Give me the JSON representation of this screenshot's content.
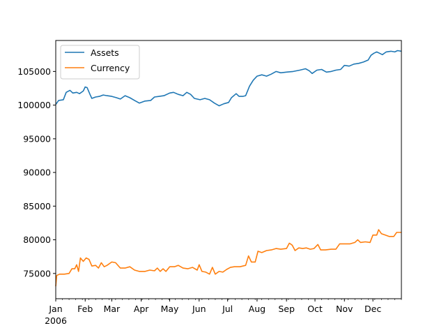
{
  "chart_data": {
    "type": "line",
    "title": "",
    "xlabel": "",
    "ylabel": "",
    "x_ticks": [
      {
        "date": "2006-01-01",
        "label": "Jan"
      },
      {
        "date": "2006-02-01",
        "label": "Feb"
      },
      {
        "date": "2006-03-01",
        "label": "Mar"
      },
      {
        "date": "2006-04-01",
        "label": "Apr"
      },
      {
        "date": "2006-05-01",
        "label": "May"
      },
      {
        "date": "2006-06-01",
        "label": "Jun"
      },
      {
        "date": "2006-07-01",
        "label": "Jul"
      },
      {
        "date": "2006-08-01",
        "label": "Aug"
      },
      {
        "date": "2006-09-01",
        "label": "Sep"
      },
      {
        "date": "2006-10-01",
        "label": "Oct"
      },
      {
        "date": "2006-11-01",
        "label": "Nov"
      },
      {
        "date": "2006-12-01",
        "label": "Dec"
      }
    ],
    "x_year_label": "2006",
    "xlim": [
      "2006-01-01",
      "2006-12-31"
    ],
    "y_ticks": [
      75000,
      80000,
      85000,
      90000,
      95000,
      100000,
      105000
    ],
    "y_tick_labels": [
      "75000",
      "80000",
      "85000",
      "90000",
      "95000",
      "100000",
      "105000"
    ],
    "ylim": [
      71250,
      109600
    ],
    "legend_position": "top-left",
    "grid": false,
    "series": [
      {
        "name": "Assets",
        "color": "#1f77b4",
        "points": [
          [
            "2006-01-01",
            100100
          ],
          [
            "2006-01-04",
            100700
          ],
          [
            "2006-01-09",
            100800
          ],
          [
            "2006-01-12",
            101900
          ],
          [
            "2006-01-16",
            102200
          ],
          [
            "2006-01-19",
            101800
          ],
          [
            "2006-01-23",
            101900
          ],
          [
            "2006-01-26",
            101700
          ],
          [
            "2006-01-30",
            102100
          ],
          [
            "2006-02-01",
            102700
          ],
          [
            "2006-02-03",
            102600
          ],
          [
            "2006-02-06",
            101600
          ],
          [
            "2006-02-08",
            101000
          ],
          [
            "2006-02-12",
            101200
          ],
          [
            "2006-02-16",
            101300
          ],
          [
            "2006-02-20",
            101500
          ],
          [
            "2006-02-24",
            101400
          ],
          [
            "2006-03-01",
            101300
          ],
          [
            "2006-03-06",
            101100
          ],
          [
            "2006-03-10",
            100900
          ],
          [
            "2006-03-15",
            101400
          ],
          [
            "2006-03-20",
            101100
          ],
          [
            "2006-03-25",
            100700
          ],
          [
            "2006-03-30",
            100300
          ],
          [
            "2006-04-05",
            100600
          ],
          [
            "2006-04-11",
            100700
          ],
          [
            "2006-04-15",
            101200
          ],
          [
            "2006-04-20",
            101300
          ],
          [
            "2006-04-25",
            101400
          ],
          [
            "2006-05-01",
            101800
          ],
          [
            "2006-05-05",
            101900
          ],
          [
            "2006-05-10",
            101600
          ],
          [
            "2006-05-15",
            101400
          ],
          [
            "2006-05-19",
            101900
          ],
          [
            "2006-05-23",
            101600
          ],
          [
            "2006-05-27",
            101000
          ],
          [
            "2006-06-02",
            100800
          ],
          [
            "2006-06-07",
            101000
          ],
          [
            "2006-06-12",
            100800
          ],
          [
            "2006-06-17",
            100300
          ],
          [
            "2006-06-22",
            99900
          ],
          [
            "2006-06-27",
            100200
          ],
          [
            "2006-07-02",
            100400
          ],
          [
            "2006-07-05",
            101100
          ],
          [
            "2006-07-10",
            101700
          ],
          [
            "2006-07-13",
            101300
          ],
          [
            "2006-07-17",
            101300
          ],
          [
            "2006-07-20",
            101400
          ],
          [
            "2006-07-24",
            102800
          ],
          [
            "2006-07-28",
            103700
          ],
          [
            "2006-08-01",
            104300
          ],
          [
            "2006-08-06",
            104500
          ],
          [
            "2006-08-11",
            104300
          ],
          [
            "2006-08-16",
            104600
          ],
          [
            "2006-08-21",
            105000
          ],
          [
            "2006-08-26",
            104800
          ],
          [
            "2006-09-01",
            104900
          ],
          [
            "2006-09-08",
            105000
          ],
          [
            "2006-09-15",
            105200
          ],
          [
            "2006-09-21",
            105400
          ],
          [
            "2006-09-25",
            105100
          ],
          [
            "2006-09-28",
            104700
          ],
          [
            "2006-10-03",
            105200
          ],
          [
            "2006-10-08",
            105300
          ],
          [
            "2006-10-13",
            104900
          ],
          [
            "2006-10-18",
            105000
          ],
          [
            "2006-10-23",
            105200
          ],
          [
            "2006-10-28",
            105300
          ],
          [
            "2006-11-01",
            105900
          ],
          [
            "2006-11-06",
            105800
          ],
          [
            "2006-11-11",
            106100
          ],
          [
            "2006-11-16",
            106200
          ],
          [
            "2006-11-21",
            106400
          ],
          [
            "2006-11-26",
            106700
          ],
          [
            "2006-11-29",
            107400
          ],
          [
            "2006-12-02",
            107700
          ],
          [
            "2006-12-05",
            107900
          ],
          [
            "2006-12-08",
            107700
          ],
          [
            "2006-12-11",
            107500
          ],
          [
            "2006-12-15",
            107900
          ],
          [
            "2006-12-20",
            108000
          ],
          [
            "2006-12-24",
            107900
          ],
          [
            "2006-12-27",
            108100
          ],
          [
            "2006-12-31",
            108000
          ]
        ]
      },
      {
        "name": "Currency",
        "color": "#ff7f0e",
        "points": [
          [
            "2006-01-01",
            73100
          ],
          [
            "2006-01-02",
            74700
          ],
          [
            "2006-01-05",
            74900
          ],
          [
            "2006-01-10",
            74900
          ],
          [
            "2006-01-15",
            75000
          ],
          [
            "2006-01-18",
            75700
          ],
          [
            "2006-01-21",
            75700
          ],
          [
            "2006-01-23",
            76300
          ],
          [
            "2006-01-25",
            75300
          ],
          [
            "2006-01-27",
            77300
          ],
          [
            "2006-01-30",
            76800
          ],
          [
            "2006-02-02",
            77300
          ],
          [
            "2006-02-05",
            77100
          ],
          [
            "2006-02-08",
            76100
          ],
          [
            "2006-02-12",
            76200
          ],
          [
            "2006-02-15",
            75800
          ],
          [
            "2006-02-18",
            76600
          ],
          [
            "2006-02-21",
            76000
          ],
          [
            "2006-02-24",
            76200
          ],
          [
            "2006-03-01",
            76700
          ],
          [
            "2006-03-05",
            76600
          ],
          [
            "2006-03-10",
            75800
          ],
          [
            "2006-03-15",
            75800
          ],
          [
            "2006-03-20",
            76000
          ],
          [
            "2006-03-25",
            75500
          ],
          [
            "2006-03-30",
            75300
          ],
          [
            "2006-04-05",
            75300
          ],
          [
            "2006-04-10",
            75500
          ],
          [
            "2006-04-15",
            75400
          ],
          [
            "2006-04-18",
            75800
          ],
          [
            "2006-04-21",
            75300
          ],
          [
            "2006-04-24",
            75700
          ],
          [
            "2006-04-27",
            75300
          ],
          [
            "2006-05-01",
            76000
          ],
          [
            "2006-05-06",
            76000
          ],
          [
            "2006-05-10",
            76200
          ],
          [
            "2006-05-15",
            75800
          ],
          [
            "2006-05-20",
            75700
          ],
          [
            "2006-05-25",
            75900
          ],
          [
            "2006-05-30",
            75500
          ],
          [
            "2006-06-01",
            76300
          ],
          [
            "2006-06-04",
            75300
          ],
          [
            "2006-06-08",
            75200
          ],
          [
            "2006-06-12",
            74900
          ],
          [
            "2006-06-15",
            75900
          ],
          [
            "2006-06-18",
            74900
          ],
          [
            "2006-06-22",
            75300
          ],
          [
            "2006-06-26",
            75200
          ],
          [
            "2006-06-30",
            75600
          ],
          [
            "2006-07-04",
            75900
          ],
          [
            "2006-07-08",
            76000
          ],
          [
            "2006-07-14",
            76000
          ],
          [
            "2006-07-20",
            76200
          ],
          [
            "2006-07-23",
            77600
          ],
          [
            "2006-07-26",
            76700
          ],
          [
            "2006-07-30",
            76700
          ],
          [
            "2006-08-02",
            78300
          ],
          [
            "2006-08-06",
            78100
          ],
          [
            "2006-08-11",
            78400
          ],
          [
            "2006-08-16",
            78500
          ],
          [
            "2006-08-21",
            78700
          ],
          [
            "2006-08-26",
            78600
          ],
          [
            "2006-09-01",
            78700
          ],
          [
            "2006-09-04",
            79500
          ],
          [
            "2006-09-07",
            79200
          ],
          [
            "2006-09-10",
            78400
          ],
          [
            "2006-09-14",
            78800
          ],
          [
            "2006-09-18",
            78700
          ],
          [
            "2006-09-22",
            78800
          ],
          [
            "2006-09-26",
            78600
          ],
          [
            "2006-09-30",
            78700
          ],
          [
            "2006-10-04",
            79300
          ],
          [
            "2006-10-07",
            78500
          ],
          [
            "2006-10-12",
            78500
          ],
          [
            "2006-10-18",
            78600
          ],
          [
            "2006-10-23",
            78600
          ],
          [
            "2006-10-27",
            79400
          ],
          [
            "2006-11-02",
            79400
          ],
          [
            "2006-11-07",
            79400
          ],
          [
            "2006-11-12",
            79600
          ],
          [
            "2006-11-15",
            80000
          ],
          [
            "2006-11-18",
            79600
          ],
          [
            "2006-11-23",
            79700
          ],
          [
            "2006-11-28",
            79600
          ],
          [
            "2006-12-01",
            80700
          ],
          [
            "2006-12-05",
            80700
          ],
          [
            "2006-12-07",
            81500
          ],
          [
            "2006-12-10",
            80900
          ],
          [
            "2006-12-14",
            80700
          ],
          [
            "2006-12-18",
            80500
          ],
          [
            "2006-12-23",
            80500
          ],
          [
            "2006-12-26",
            81100
          ],
          [
            "2006-12-31",
            81100
          ]
        ]
      }
    ]
  }
}
